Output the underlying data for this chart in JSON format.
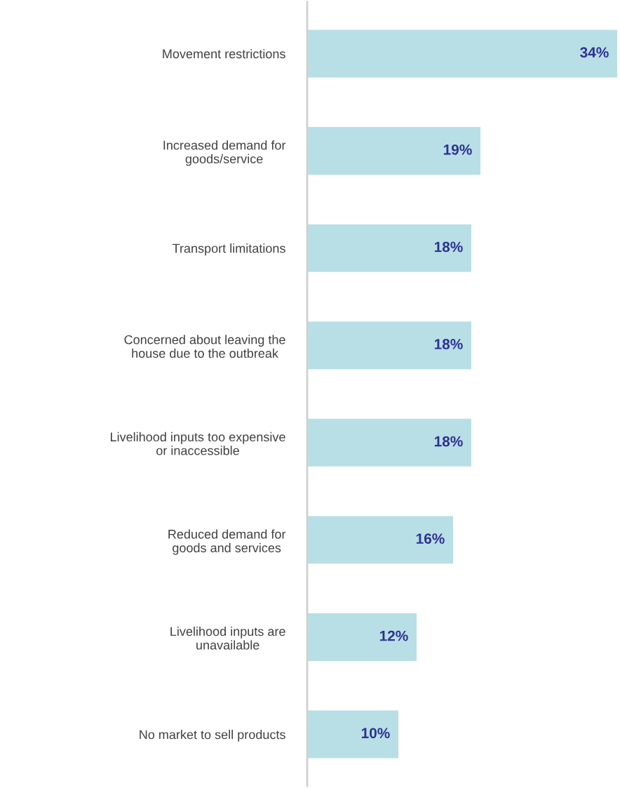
{
  "chart_data": {
    "type": "bar",
    "orientation": "horizontal",
    "categories": [
      "Movement restrictions",
      "Increased demand for\ngoods/service",
      "Transport limitations",
      "Concerned about leaving the\nhouse due to the outbreak",
      "Livelihood inputs too expensive\nor inaccessible",
      "Reduced demand for\ngoods and services",
      "Livelihood inputs are\nunavailable",
      "No market to sell products"
    ],
    "values": [
      34,
      19,
      18,
      18,
      18,
      16,
      12,
      10
    ],
    "value_labels": [
      "34%",
      "19%",
      "18%",
      "18%",
      "18%",
      "16%",
      "12%",
      "10%"
    ],
    "color": "#b8dfe6",
    "xlim": [
      0,
      34
    ],
    "tick_labels": "y",
    "grid": false,
    "legend": false
  }
}
